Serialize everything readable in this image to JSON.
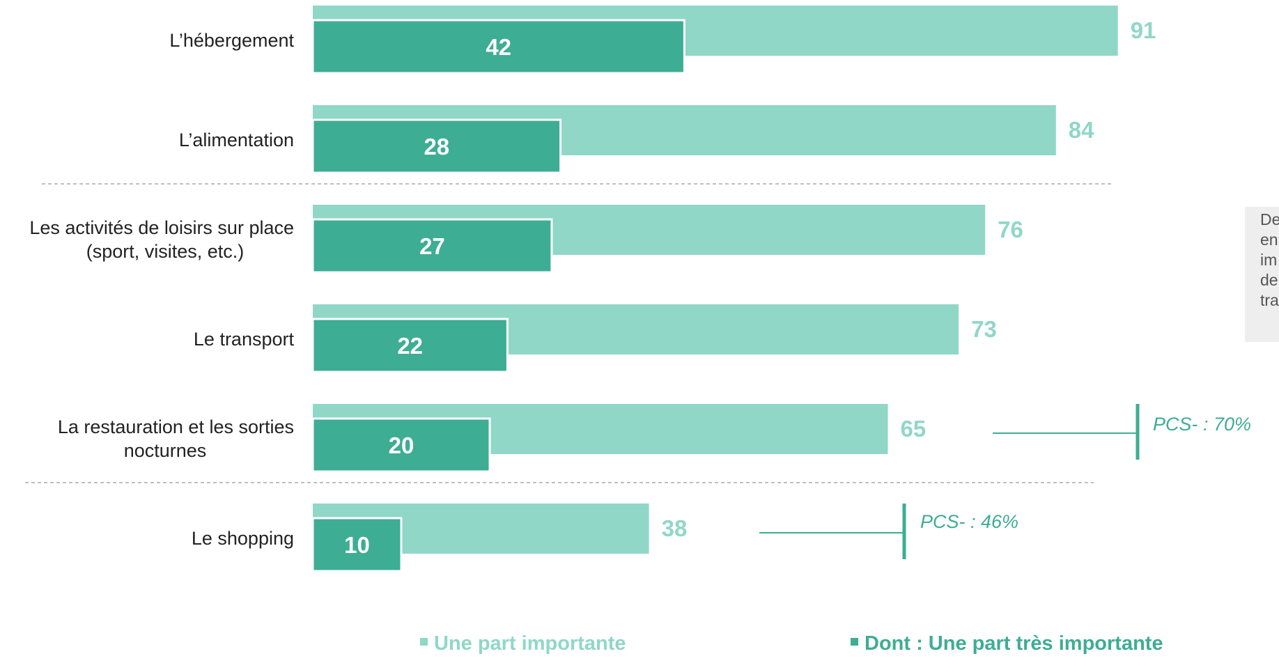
{
  "colors": {
    "light": "#90d7c8",
    "dark": "#3dad94",
    "light_text": "#90d7c8",
    "annotation": "#3dad94",
    "separator": "#aaaaaa",
    "side_box_bg": "#eeeeee"
  },
  "chart_data": {
    "type": "bar",
    "orientation": "horizontal",
    "categories": [
      [
        "L’hébergement"
      ],
      [
        "L’alimentation"
      ],
      [
        "Les activités de loisirs sur place",
        "(sport, visites, etc.)"
      ],
      [
        "Le transport"
      ],
      [
        "La restauration et les sorties",
        "nocturnes"
      ],
      [
        "Le shopping"
      ]
    ],
    "series": [
      {
        "name": "Une part importante",
        "values": [
          91,
          84,
          76,
          73,
          65,
          38
        ],
        "labels": [
          "91",
          "84",
          "76",
          "73",
          "65",
          "38"
        ]
      },
      {
        "name": "Dont : Une part très importante",
        "values": [
          42,
          28,
          27,
          22,
          20,
          10
        ],
        "labels": [
          "42",
          "28",
          "27",
          "22",
          "20",
          "10"
        ]
      }
    ],
    "xlim": [
      0,
      100
    ],
    "grid": false,
    "legend_position": "bottom",
    "legend": [
      "Une part importante",
      "Dont : Une part très importante"
    ],
    "separators_after": [
      1,
      4
    ],
    "annotations": [
      {
        "category_index": 4,
        "text": "PCS- : 70%"
      },
      {
        "category_index": 5,
        "text": "PCS- : 46%"
      }
    ]
  },
  "side_note": {
    "lines": [
      "De",
      "en",
      "im",
      "de",
      "tra"
    ]
  }
}
